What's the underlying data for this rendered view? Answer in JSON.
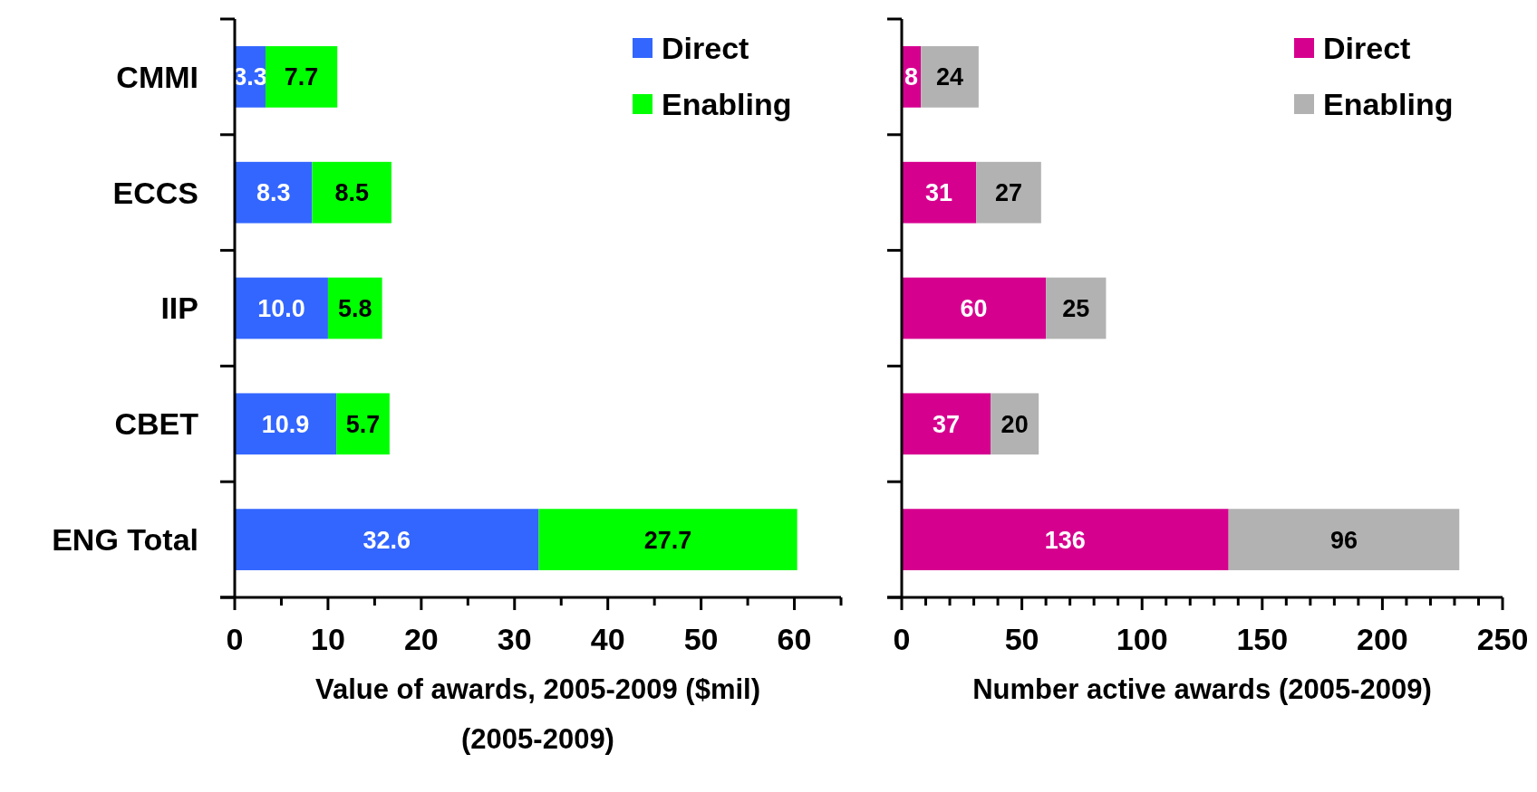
{
  "chart_data": [
    {
      "type": "bar",
      "orientation": "horizontal",
      "stacked": true,
      "categories": [
        "CMMI",
        "ECCS",
        "IIP",
        "CBET",
        "ENG Total"
      ],
      "xlabel": "Value of awards, 2005-2009 ($mil)\n(2005-2009)",
      "xlim": [
        0,
        65
      ],
      "xticks": [
        0,
        {
          "value": 5,
          "label": null
        },
        10,
        {
          "value": 15,
          "label": null
        },
        20,
        {
          "value": 25,
          "label": null
        },
        30,
        {
          "value": 35,
          "label": null
        },
        40,
        {
          "value": 45,
          "label": null
        },
        50,
        {
          "value": 55,
          "label": null
        },
        60,
        {
          "value": 65,
          "label": null
        }
      ],
      "legend": "top right",
      "series": [
        {
          "name": "Direct",
          "color": "#3366ff",
          "values": [
            3.3,
            8.3,
            10.0,
            10.9,
            32.6
          ],
          "value_labels": [
            "3.3",
            "8.3",
            "10.0",
            "10.9",
            "32.6"
          ]
        },
        {
          "name": "Enabling",
          "color": "#00ff00",
          "values": [
            7.7,
            8.5,
            5.8,
            5.7,
            27.7
          ],
          "value_labels": [
            "7.7",
            "8.5",
            "5.8",
            "5.7",
            "27.7"
          ]
        }
      ]
    },
    {
      "type": "bar",
      "orientation": "horizontal",
      "stacked": true,
      "categories": [
        null,
        null,
        null,
        null,
        null
      ],
      "tick_labels": "x",
      "xlabel": "Number active awards (2005-2009)",
      "xlim": [
        0,
        250
      ],
      "xticks": [
        0,
        {
          "value": 10,
          "label": null
        },
        {
          "value": 20,
          "label": null
        },
        {
          "value": 30,
          "label": null
        },
        {
          "value": 40,
          "label": null
        },
        50,
        {
          "value": 60,
          "label": null
        },
        {
          "value": 70,
          "label": null
        },
        {
          "value": 80,
          "label": null
        },
        {
          "value": 90,
          "label": null
        },
        100,
        {
          "value": 110,
          "label": null
        },
        {
          "value": 120,
          "label": null
        },
        {
          "value": 130,
          "label": null
        },
        {
          "value": 140,
          "label": null
        },
        150,
        {
          "value": 160,
          "label": null
        },
        {
          "value": 170,
          "label": null
        },
        {
          "value": 180,
          "label": null
        },
        {
          "value": 190,
          "label": null
        },
        200,
        {
          "value": 210,
          "label": null
        },
        {
          "value": 220,
          "label": null
        },
        {
          "value": 230,
          "label": null
        },
        {
          "value": 240,
          "label": null
        },
        250
      ],
      "legend": "top right",
      "series": [
        {
          "name": "Direct",
          "color": "#d6008f",
          "values": [
            8,
            31,
            60,
            37,
            136
          ],
          "value_labels": [
            "8",
            "31",
            "60",
            "37",
            "136"
          ]
        },
        {
          "name": "Enabling",
          "color": "#b2b2b2",
          "values": [
            24,
            27,
            25,
            20,
            96
          ],
          "value_labels": [
            "24",
            "27",
            "25",
            "20",
            "96"
          ]
        }
      ]
    }
  ]
}
